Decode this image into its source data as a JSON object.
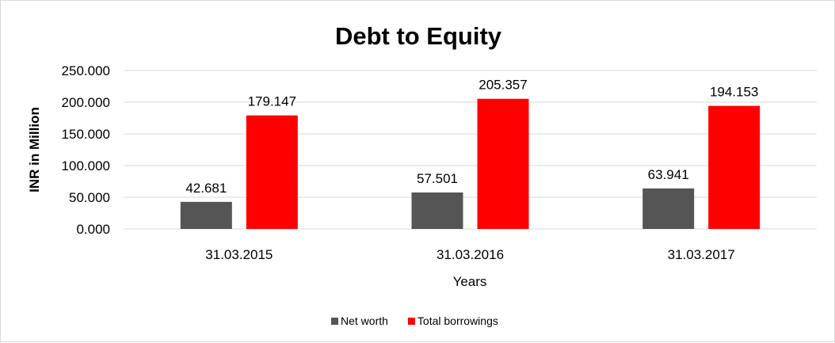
{
  "chart_data": {
    "type": "bar",
    "title": "Debt to Equity",
    "xlabel": "Years",
    "ylabel": "INR in Million",
    "categories": [
      "31.03.2015",
      "31.03.2016",
      "31.03.2017"
    ],
    "series": [
      {
        "name": "Net worth",
        "values": [
          42.681,
          57.501,
          63.941
        ],
        "labels": [
          "42.681",
          "57.501",
          "63.941"
        ],
        "color": "#555555"
      },
      {
        "name": "Total borrowings",
        "values": [
          179.147,
          205.357,
          194.153
        ],
        "labels": [
          "179.147",
          "205.357",
          "194.153"
        ],
        "color": "#ff0000"
      }
    ],
    "ylim": [
      0,
      250
    ],
    "yticks": [
      "0.000",
      "50.000",
      "100.000",
      "150.000",
      "200.000",
      "250.000"
    ],
    "grid": true,
    "legend": "bottom"
  }
}
